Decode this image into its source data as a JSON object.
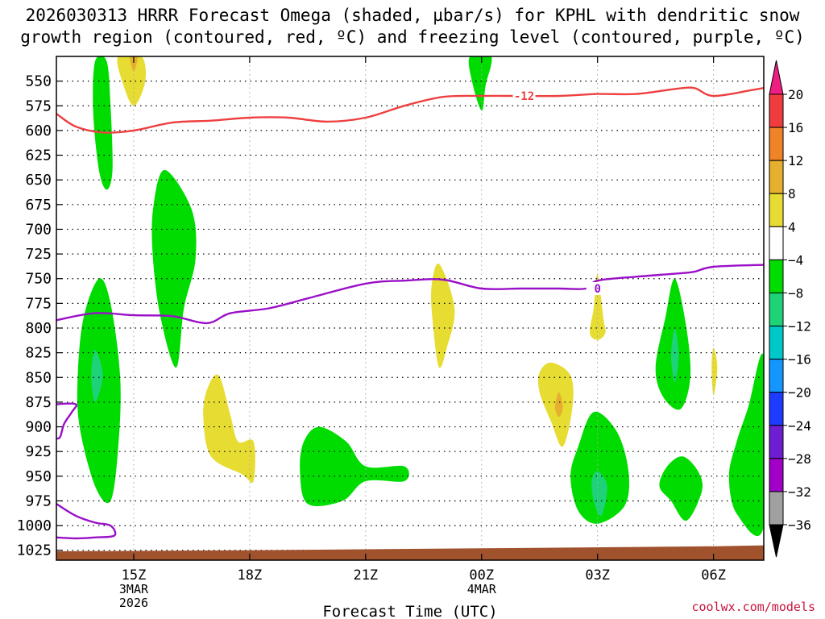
{
  "title": {
    "line1": "2026030313 HRRR Forecast Omega (shaded, µbar/s) for KPHL with dendritic snow",
    "line2": "growth region (contoured, red, ºC) and freezing level (contoured, purple, ºC)"
  },
  "credit": "coolwx.com/models",
  "chart_data": {
    "type": "heatmap",
    "xlabel": "Forecast Time (UTC)",
    "ylabel": "",
    "x_range_hours": [
      13,
      31.3
    ],
    "y_range_hPa": [
      1035,
      525
    ],
    "x_ticks": [
      {
        "hour": 15,
        "lines": [
          "15Z",
          "3MAR",
          "2026"
        ]
      },
      {
        "hour": 18,
        "lines": [
          "18Z"
        ]
      },
      {
        "hour": 21,
        "lines": [
          "21Z"
        ]
      },
      {
        "hour": 24,
        "lines": [
          "00Z",
          "4MAR"
        ]
      },
      {
        "hour": 27,
        "lines": [
          "03Z"
        ]
      },
      {
        "hour": 30,
        "lines": [
          "06Z"
        ]
      }
    ],
    "y_ticks": [
      550,
      575,
      600,
      625,
      650,
      675,
      700,
      725,
      750,
      775,
      800,
      825,
      850,
      875,
      900,
      925,
      950,
      975,
      1000,
      1025
    ],
    "colorbar": {
      "labels": [
        "20",
        "16",
        "12",
        "8",
        "4",
        "−4",
        "−8",
        "−12",
        "−16",
        "−20",
        "−24",
        "−28",
        "−32",
        "−36"
      ],
      "colors": [
        "#f01e82",
        "#f03c3c",
        "#f08228",
        "#e6af2d",
        "#e6dc32",
        "#ffffff",
        "#00dc00",
        "#1ed278",
        "#00c8c8",
        "#1496ff",
        "#1e3cff",
        "#6e1ed2",
        "#a000c8",
        "#a0a0a0",
        "#000000"
      ]
    },
    "shaded_regions": [
      {
        "category": "-4 to -8",
        "color": "#00dc00",
        "points": [
          [
            14.0,
            530
          ],
          [
            14.3,
            530
          ],
          [
            14.4,
            575
          ],
          [
            14.45,
            640
          ],
          [
            14.3,
            660
          ],
          [
            14.1,
            640
          ],
          [
            13.95,
            580
          ]
        ]
      },
      {
        "category": "-4 to -8",
        "color": "#00dc00",
        "points": [
          [
            15.8,
            640
          ],
          [
            16.5,
            680
          ],
          [
            16.6,
            730
          ],
          [
            16.3,
            780
          ],
          [
            16.1,
            840
          ],
          [
            15.7,
            790
          ],
          [
            15.5,
            730
          ],
          [
            15.5,
            680
          ]
        ]
      },
      {
        "category": "-4 to -8",
        "color": "#00dc00",
        "points": [
          [
            14.1,
            750
          ],
          [
            14.4,
            775
          ],
          [
            14.65,
            850
          ],
          [
            14.6,
            920
          ],
          [
            14.4,
            975
          ],
          [
            14.0,
            960
          ],
          [
            13.6,
            900
          ],
          [
            13.55,
            850
          ],
          [
            13.7,
            790
          ]
        ]
      },
      {
        "category": "-8 to -12",
        "color": "#1ed278",
        "points": [
          [
            14.0,
            822
          ],
          [
            14.2,
            848
          ],
          [
            14.0,
            875
          ],
          [
            13.9,
            848
          ]
        ]
      },
      {
        "category": "-4 to -8",
        "color": "#00dc00",
        "points": [
          [
            19.8,
            900
          ],
          [
            20.5,
            915
          ],
          [
            21.0,
            940
          ],
          [
            22.0,
            940
          ],
          [
            22.0,
            955
          ],
          [
            21.0,
            955
          ],
          [
            20.4,
            975
          ],
          [
            19.5,
            978
          ],
          [
            19.3,
            945
          ],
          [
            19.4,
            915
          ]
        ]
      },
      {
        "category": "-4 to -8",
        "color": "#00dc00",
        "points": [
          [
            23.7,
            525
          ],
          [
            24.25,
            525
          ],
          [
            24.1,
            555
          ],
          [
            24.0,
            580
          ],
          [
            23.75,
            550
          ]
        ]
      },
      {
        "category": "-4 to -8",
        "color": "#00dc00",
        "points": [
          [
            26.9,
            885
          ],
          [
            27.5,
            905
          ],
          [
            27.8,
            945
          ],
          [
            27.7,
            980
          ],
          [
            27.0,
            998
          ],
          [
            26.5,
            985
          ],
          [
            26.3,
            950
          ],
          [
            26.5,
            920
          ]
        ]
      },
      {
        "category": "-8 to -12",
        "color": "#1ed278",
        "points": [
          [
            27.0,
            945
          ],
          [
            27.25,
            960
          ],
          [
            27.1,
            990
          ],
          [
            26.9,
            975
          ],
          [
            26.85,
            955
          ]
        ]
      },
      {
        "category": "-4 to -8",
        "color": "#00dc00",
        "points": [
          [
            29.0,
            750
          ],
          [
            29.3,
            800
          ],
          [
            29.4,
            850
          ],
          [
            29.15,
            882
          ],
          [
            28.7,
            870
          ],
          [
            28.5,
            840
          ],
          [
            28.75,
            790
          ]
        ]
      },
      {
        "category": "-8 to -12",
        "color": "#1ed278",
        "points": [
          [
            29.0,
            800
          ],
          [
            29.1,
            828
          ],
          [
            29.0,
            855
          ],
          [
            28.9,
            828
          ]
        ]
      },
      {
        "category": "-4 to -8",
        "color": "#00dc00",
        "points": [
          [
            29.2,
            930
          ],
          [
            29.6,
            945
          ],
          [
            29.7,
            965
          ],
          [
            29.3,
            995
          ],
          [
            28.9,
            975
          ],
          [
            28.6,
            960
          ],
          [
            28.8,
            940
          ]
        ]
      },
      {
        "category": "-4 to -8",
        "color": "#00dc00",
        "points": [
          [
            31.3,
            830
          ],
          [
            31.3,
            1000
          ],
          [
            30.6,
            988
          ],
          [
            30.4,
            950
          ],
          [
            30.6,
            915
          ],
          [
            30.9,
            880
          ]
        ]
      },
      {
        "category": "4 to 8",
        "color": "#e6dc32",
        "points": [
          [
            15.2,
            525
          ],
          [
            15.3,
            550
          ],
          [
            15.0,
            575
          ],
          [
            14.7,
            550
          ],
          [
            14.6,
            525
          ]
        ]
      },
      {
        "category": "8 to 12",
        "color": "#e6af2d",
        "points": [
          [
            15.1,
            525
          ],
          [
            15.0,
            540
          ],
          [
            14.9,
            525
          ]
        ]
      },
      {
        "category": "4 to 8",
        "color": "#e6dc32",
        "points": [
          [
            17.2,
            848
          ],
          [
            17.5,
            888
          ],
          [
            17.7,
            915
          ],
          [
            18.1,
            915
          ],
          [
            18.1,
            955
          ],
          [
            17.8,
            948
          ],
          [
            17.0,
            930
          ],
          [
            16.8,
            890
          ],
          [
            16.9,
            862
          ]
        ]
      },
      {
        "category": "4 to 8",
        "color": "#e6dc32",
        "points": [
          [
            22.9,
            735
          ],
          [
            23.3,
            780
          ],
          [
            23.1,
            820
          ],
          [
            22.9,
            840
          ],
          [
            22.75,
            800
          ],
          [
            22.7,
            760
          ]
        ]
      },
      {
        "category": "4 to 8",
        "color": "#e6dc32",
        "points": [
          [
            25.8,
            835
          ],
          [
            26.3,
            848
          ],
          [
            26.35,
            880
          ],
          [
            26.1,
            920
          ],
          [
            25.8,
            895
          ],
          [
            25.5,
            865
          ],
          [
            25.5,
            845
          ]
        ]
      },
      {
        "category": "8 to 12",
        "color": "#e6af2d",
        "points": [
          [
            26.0,
            865
          ],
          [
            26.1,
            880
          ],
          [
            26.0,
            890
          ],
          [
            25.9,
            880
          ]
        ]
      },
      {
        "category": "4 to 8",
        "color": "#e6dc32",
        "points": [
          [
            27.0,
            745
          ],
          [
            27.15,
            790
          ],
          [
            27.2,
            805
          ],
          [
            27.0,
            812
          ],
          [
            26.8,
            805
          ],
          [
            26.9,
            780
          ]
        ]
      },
      {
        "category": "4 to 8",
        "color": "#e6dc32",
        "points": [
          [
            30.0,
            820
          ],
          [
            30.1,
            840
          ],
          [
            30.0,
            868
          ],
          [
            29.95,
            840
          ]
        ]
      }
    ],
    "contours": [
      {
        "name": "dendritic snow growth region",
        "label": "-12",
        "label_at": [
          25.1,
          565
        ],
        "color": "#ee4040",
        "points": [
          [
            13.0,
            583
          ],
          [
            13.5,
            596
          ],
          [
            14.2,
            602
          ],
          [
            15.0,
            600
          ],
          [
            16.0,
            592
          ],
          [
            17.0,
            590
          ],
          [
            18.0,
            587
          ],
          [
            19.0,
            587
          ],
          [
            20.0,
            591
          ],
          [
            21.0,
            587
          ],
          [
            22.0,
            575
          ],
          [
            23.0,
            566
          ],
          [
            24.0,
            565
          ],
          [
            24.7,
            565
          ],
          [
            26.0,
            565
          ],
          [
            27.0,
            563
          ],
          [
            28.0,
            563
          ],
          [
            29.0,
            558
          ],
          [
            29.5,
            557
          ],
          [
            30.0,
            565
          ],
          [
            31.0,
            559
          ],
          [
            31.3,
            557
          ]
        ]
      },
      {
        "name": "freezing level",
        "label": "0",
        "label_at": [
          27.0,
          760
        ],
        "color": "#9a10c8",
        "points": [
          [
            13.0,
            792
          ],
          [
            14.0,
            785
          ],
          [
            15.0,
            787
          ],
          [
            16.0,
            788
          ],
          [
            16.9,
            795
          ],
          [
            17.5,
            785
          ],
          [
            18.5,
            780
          ],
          [
            19.5,
            770
          ],
          [
            21.0,
            755
          ],
          [
            22.0,
            752
          ],
          [
            23.0,
            751
          ],
          [
            24.0,
            760
          ],
          [
            25.0,
            760
          ],
          [
            26.0,
            760
          ],
          [
            26.7,
            760
          ],
          [
            27.0,
            752
          ],
          [
            28.0,
            748
          ],
          [
            29.0,
            745
          ],
          [
            29.5,
            743
          ],
          [
            30.0,
            738
          ],
          [
            31.3,
            736
          ]
        ]
      },
      {
        "name": "freezing level lower segment",
        "label": "",
        "color": "#9a10c8",
        "points": [
          [
            13.0,
            877
          ],
          [
            13.5,
            877
          ],
          [
            13.4,
            885
          ],
          [
            13.2,
            897
          ],
          [
            13.1,
            910
          ],
          [
            13.0,
            912
          ]
        ]
      },
      {
        "name": "freezing level surface segment",
        "label": "",
        "color": "#9a10c8",
        "points": [
          [
            13.0,
            978
          ],
          [
            13.5,
            990
          ],
          [
            14.0,
            997
          ],
          [
            14.4,
            1000
          ],
          [
            14.5,
            1010
          ],
          [
            14.0,
            1012
          ],
          [
            13.5,
            1013
          ],
          [
            13.0,
            1012
          ]
        ]
      }
    ],
    "terrain": {
      "color": "#a0522d",
      "points": [
        [
          13.0,
          1026
        ],
        [
          18.0,
          1025
        ],
        [
          24.0,
          1023
        ],
        [
          30.0,
          1021
        ],
        [
          31.3,
          1020
        ]
      ]
    }
  }
}
